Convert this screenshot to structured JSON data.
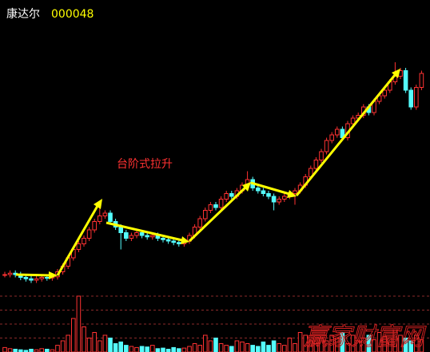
{
  "chart_data": {
    "type": "candlestick",
    "title": "康达尔",
    "code": "000048",
    "annotation": "台阶式拉升",
    "watermark": "赢家财富网",
    "up_color": "#ff3232",
    "down_color": "#54fcfc",
    "ylim": [
      0,
      100
    ],
    "vlim": [
      0,
      100
    ],
    "vticks": [
      25,
      50,
      75,
      100
    ],
    "open": [
      6,
      6,
      6.5,
      6,
      5,
      4.5,
      4,
      4.5,
      5,
      4.8,
      5.2,
      7,
      9,
      12,
      15,
      17,
      19,
      22,
      25,
      27,
      28,
      25,
      23,
      21,
      19,
      20,
      21,
      20,
      19.5,
      20,
      19,
      18.5,
      18,
      17.5,
      17,
      18,
      20,
      23,
      26,
      29,
      31,
      30,
      33,
      35,
      34,
      36,
      38,
      40,
      37,
      36,
      35,
      34,
      32,
      33,
      34,
      35,
      36,
      38,
      41,
      44,
      47,
      50,
      54,
      56,
      58,
      55,
      60,
      62,
      63,
      66,
      64,
      68,
      70,
      72,
      75,
      77,
      79,
      72,
      66,
      73
    ],
    "high": [
      7,
      7.5,
      7.5,
      7,
      6,
      5.5,
      5.5,
      6,
      6,
      6.2,
      8,
      10,
      13,
      16,
      18,
      20,
      23,
      26,
      30,
      29,
      29,
      26,
      24,
      22,
      21,
      22,
      22,
      21,
      21,
      21,
      20,
      19.5,
      19,
      18.5,
      19,
      21,
      24,
      27,
      30,
      32,
      32,
      34,
      36,
      36,
      37,
      39,
      43,
      41,
      38,
      37,
      36,
      35,
      34,
      35,
      36,
      37,
      39,
      42,
      45,
      48,
      51,
      55,
      57,
      59,
      59,
      61,
      63,
      64,
      67,
      67,
      69,
      71,
      73,
      76,
      82,
      80,
      80,
      73,
      74,
      79
    ],
    "low": [
      5,
      5,
      5,
      4,
      3.5,
      3,
      3,
      3.5,
      3.8,
      3.8,
      4.2,
      6,
      8,
      11,
      14,
      16,
      18,
      21,
      24,
      26,
      24,
      22,
      15,
      18,
      18,
      19,
      19,
      18.5,
      18.5,
      18,
      17.5,
      17,
      16.5,
      16,
      16,
      17,
      19,
      22,
      25,
      28,
      29,
      29,
      32,
      33,
      33,
      35,
      37,
      36,
      35,
      34,
      33,
      29,
      31,
      32,
      33,
      31,
      35,
      37,
      40,
      43,
      46,
      49,
      53,
      55,
      54,
      54,
      59,
      61,
      62,
      63,
      63,
      67,
      69,
      71,
      74,
      76,
      71,
      65,
      65,
      72
    ],
    "close": [
      6,
      6.5,
      6,
      5,
      4.5,
      4,
      4.5,
      5,
      4.8,
      5.2,
      7,
      9,
      12,
      15,
      17,
      19,
      22,
      25,
      27,
      28,
      25,
      23,
      21,
      19,
      20,
      21,
      20,
      19.5,
      20,
      19,
      18.5,
      18,
      17.5,
      17,
      18,
      20,
      23,
      26,
      29,
      31,
      30,
      33,
      35,
      34,
      36,
      38,
      40,
      37,
      36,
      35,
      34,
      32,
      33,
      34,
      35,
      36,
      38,
      41,
      44,
      47,
      50,
      54,
      56,
      58,
      55,
      60,
      62,
      63,
      66,
      64,
      68,
      70,
      72,
      75,
      77,
      79,
      72,
      66,
      73,
      78
    ],
    "volume": [
      8,
      6,
      5,
      4,
      3,
      5,
      4,
      6,
      5,
      4,
      12,
      20,
      30,
      60,
      100,
      45,
      25,
      35,
      20,
      30,
      25,
      15,
      18,
      12,
      10,
      8,
      10,
      9,
      12,
      6,
      7,
      5,
      8,
      6,
      7,
      10,
      15,
      12,
      30,
      20,
      25,
      15,
      12,
      10,
      20,
      18,
      15,
      12,
      10,
      18,
      12,
      20,
      15,
      12,
      25,
      15,
      35,
      30,
      20,
      15,
      25,
      20,
      30,
      25,
      35,
      15,
      30,
      20,
      25,
      30,
      22,
      35,
      28,
      25,
      40,
      30,
      25,
      20,
      30,
      22
    ]
  }
}
